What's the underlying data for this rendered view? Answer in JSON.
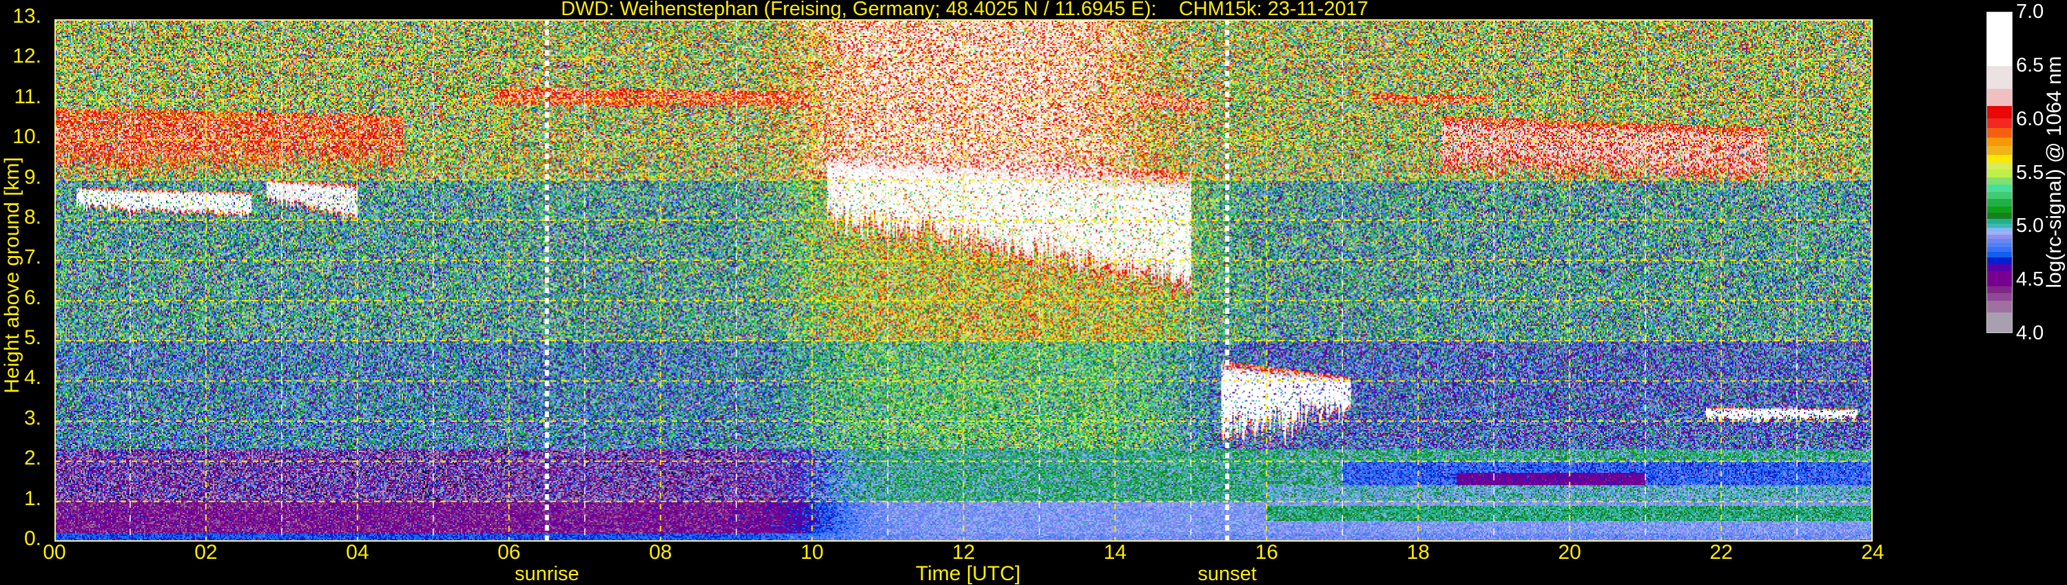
{
  "chart_data": {
    "type": "heatmap",
    "title": "DWD: Weihenstephan (Freising, Germany; 48.4025 N / 11.6945 E):    CHM15k: 23-11-2017",
    "xlabel": "Time [UTC]",
    "ylabel": "Height above ground [km]",
    "xlim": [
      0,
      24
    ],
    "ylim": [
      0,
      13
    ],
    "x_ticks": [
      "00",
      "02",
      "04",
      "06",
      "08",
      "10",
      "12",
      "14",
      "16",
      "18",
      "20",
      "22",
      "24"
    ],
    "x_tick_values": [
      0,
      2,
      4,
      6,
      8,
      10,
      12,
      14,
      16,
      18,
      20,
      22,
      24
    ],
    "y_ticks": [
      "0.",
      "1.",
      "2.",
      "3.",
      "4.",
      "5.",
      "6.",
      "7.",
      "8.",
      "9.",
      "10.",
      "11.",
      "12.",
      "13."
    ],
    "y_tick_values": [
      0,
      1,
      2,
      3,
      4,
      5,
      6,
      7,
      8,
      9,
      10,
      11,
      12,
      13
    ],
    "grid": true,
    "grid_color": "#ffee00",
    "annotations": [
      {
        "label": "sunrise",
        "time": 6.5
      },
      {
        "label": "sunset",
        "time": 15.48
      }
    ],
    "colorbar": {
      "label": "log(rc-signal) @ 1064 nm",
      "range": [
        4.0,
        7.0
      ],
      "ticks": [
        "4.0",
        "4.5",
        "5.0",
        "5.5",
        "6.0",
        "6.5",
        "7.0"
      ],
      "tick_values": [
        4.0,
        4.5,
        5.0,
        5.5,
        6.0,
        6.5,
        7.0
      ],
      "bins": [
        {
          "upto": 4.193,
          "color": "#a8a0b0"
        },
        {
          "upto": 4.3,
          "color": "#a070a0"
        },
        {
          "upto": 4.369,
          "color": "#904898"
        },
        {
          "upto": 4.433,
          "color": "#802888"
        },
        {
          "upto": 4.579,
          "color": "#780090"
        },
        {
          "upto": 4.643,
          "color": "#5800a8"
        },
        {
          "upto": 4.707,
          "color": "#0020d0"
        },
        {
          "upto": 4.759,
          "color": "#1060f0"
        },
        {
          "upto": 4.806,
          "color": "#3870f8"
        },
        {
          "upto": 4.844,
          "color": "#5080f8"
        },
        {
          "upto": 4.883,
          "color": "#6888f0"
        },
        {
          "upto": 4.922,
          "color": "#9090f0"
        },
        {
          "upto": 4.952,
          "color": "#a0b0f8"
        },
        {
          "upto": 4.986,
          "color": "#80b8f8"
        },
        {
          "upto": 5.02,
          "color": "#40b8b0"
        },
        {
          "upto": 5.067,
          "color": "#20b090"
        },
        {
          "upto": 5.123,
          "color": "#168020"
        },
        {
          "upto": 5.183,
          "color": "#10a018"
        },
        {
          "upto": 5.256,
          "color": "#20b048"
        },
        {
          "upto": 5.32,
          "color": "#40cc70"
        },
        {
          "upto": 5.389,
          "color": "#48e098"
        },
        {
          "upto": 5.457,
          "color": "#80e070"
        },
        {
          "upto": 5.53,
          "color": "#c0f048"
        },
        {
          "upto": 5.599,
          "color": "#d8ec58"
        },
        {
          "upto": 5.669,
          "color": "#ffe800"
        },
        {
          "upto": 5.749,
          "color": "#f0b418"
        },
        {
          "upto": 5.826,
          "color": "#f89808"
        },
        {
          "upto": 5.918,
          "color": "#f46010"
        },
        {
          "upto": 6.008,
          "color": "#f42820"
        },
        {
          "upto": 6.126,
          "color": "#e80808"
        },
        {
          "upto": 6.286,
          "color": "#f0c0c0"
        },
        {
          "upto": 6.5,
          "color": "#ece2e2"
        },
        {
          "upto": 7.0,
          "color": "#ffffff"
        }
      ]
    },
    "cloud_layers": [
      {
        "time": [
          0.0,
          4.6
        ],
        "top_km": [
          10.8,
          10.6
        ],
        "base_km": [
          9.3,
          9.5
        ],
        "signal": 6.0
      },
      {
        "time": [
          0.3,
          2.6
        ],
        "top_km": [
          8.8,
          8.7
        ],
        "base_km": [
          8.3,
          8.1
        ],
        "signal": 6.7
      },
      {
        "time": [
          2.8,
          4.0
        ],
        "top_km": [
          9.0,
          8.9
        ],
        "base_km": [
          8.5,
          8.0
        ],
        "signal": 6.6
      },
      {
        "time": [
          5.8,
          10.0
        ],
        "top_km": [
          11.3,
          11.2
        ],
        "base_km": [
          10.9,
          10.8
        ],
        "signal": 6.0
      },
      {
        "time": [
          10.2,
          15.0
        ],
        "top_km": [
          9.6,
          9.2
        ],
        "base_km": [
          8.0,
          6.2
        ],
        "signal": 6.7
      },
      {
        "time": [
          14.3,
          15.2
        ],
        "top_km": [
          11.2,
          11.0
        ],
        "base_km": [
          10.8,
          10.7
        ],
        "signal": 6.1
      },
      {
        "time": [
          15.4,
          17.1
        ],
        "top_km": [
          4.5,
          4.1
        ],
        "base_km": [
          2.6,
          3.3
        ],
        "signal": 6.8
      },
      {
        "time": [
          17.4,
          19.0
        ],
        "top_km": [
          11.15,
          11.1
        ],
        "base_km": [
          10.9,
          10.9
        ],
        "signal": 6.0
      },
      {
        "time": [
          18.3,
          22.6
        ],
        "top_km": [
          10.6,
          10.3
        ],
        "base_km": [
          9.3,
          9.0
        ],
        "signal": 6.2
      },
      {
        "time": [
          21.8,
          23.8
        ],
        "top_km": [
          3.35,
          3.3
        ],
        "base_km": [
          3.0,
          3.05
        ],
        "signal": 6.8
      }
    ]
  }
}
